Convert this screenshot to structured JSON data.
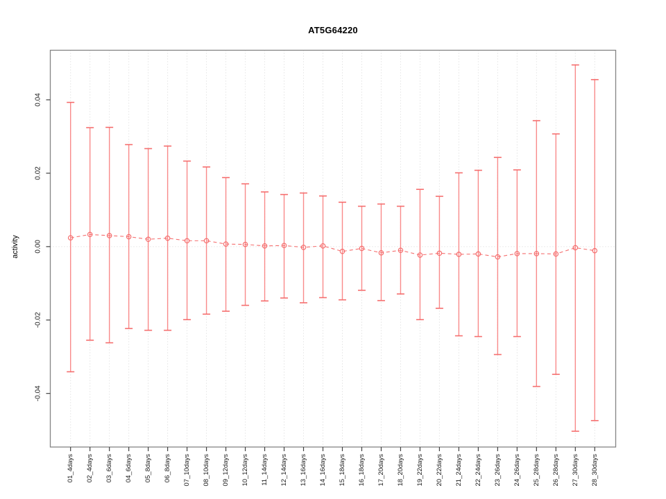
{
  "figure": {
    "title": "AT5G64220",
    "background": "#ffffff"
  },
  "colors": {
    "series": "#f56e6e",
    "series_shaft": "#f98a8a",
    "grid": "#d6d6d6",
    "frame": "#848484",
    "tick": "#404040",
    "tick_label": "#1a1a1a"
  },
  "chart_data": {
    "type": "scatter",
    "subtype": "points-with-error-bars",
    "title": "AT5G64220",
    "xlabel": "",
    "ylabel": "activity",
    "ylim": [
      -0.0546,
      0.0535
    ],
    "grid": "vertical dotted gridlines at each category plus dotted horizontal line at 0",
    "legend_position": "none",
    "yticks": [
      -0.04,
      -0.02,
      0,
      0.02,
      0.04
    ],
    "ytick_labels": [
      "-0.04",
      "-0.02",
      "0.00",
      "0.02",
      "0.04"
    ],
    "categories": [
      "01_4days",
      "02_4days",
      "03_6days",
      "04_6days",
      "05_8days",
      "06_8days",
      "07_10days",
      "08_10days",
      "09_12days",
      "10_12days",
      "11_14days",
      "12_14days",
      "13_16days",
      "14_16days",
      "15_18days",
      "16_18days",
      "17_20days",
      "18_20days",
      "19_22days",
      "20_22days",
      "21_24days",
      "22_24days",
      "23_26days",
      "24_26days",
      "25_28days",
      "26_28days",
      "27_30days",
      "28_30days"
    ],
    "series": [
      {
        "name": "activity",
        "marker": "open-circle",
        "line_style": "dashed",
        "values": [
          0.0024,
          0.0033,
          0.003,
          0.0027,
          0.002,
          0.0023,
          0.0016,
          0.0016,
          0.0007,
          0.0006,
          0.0002,
          0.0003,
          -0.0002,
          0.0002,
          -0.0013,
          -0.0005,
          -0.0017,
          -0.001,
          -0.0023,
          -0.0018,
          -0.0021,
          -0.002,
          -0.0028,
          -0.0019,
          -0.0019,
          -0.002,
          -0.0003,
          -0.0011
        ],
        "upper": [
          0.0393,
          0.0324,
          0.0325,
          0.0278,
          0.0267,
          0.0274,
          0.0233,
          0.0217,
          0.0188,
          0.0171,
          0.0149,
          0.0142,
          0.0146,
          0.0138,
          0.0121,
          0.011,
          0.0116,
          0.011,
          0.0156,
          0.0137,
          0.0201,
          0.0208,
          0.0243,
          0.0209,
          0.0343,
          0.0307,
          0.0495,
          0.0455
        ],
        "lower": [
          -0.0341,
          -0.0255,
          -0.0262,
          -0.0223,
          -0.0228,
          -0.0228,
          -0.0199,
          -0.0184,
          -0.0176,
          -0.016,
          -0.0148,
          -0.014,
          -0.0153,
          -0.0139,
          -0.0145,
          -0.0119,
          -0.0147,
          -0.0129,
          -0.0199,
          -0.0168,
          -0.0243,
          -0.0245,
          -0.0294,
          -0.0245,
          -0.0381,
          -0.0348,
          -0.0503,
          -0.0474
        ]
      }
    ]
  }
}
